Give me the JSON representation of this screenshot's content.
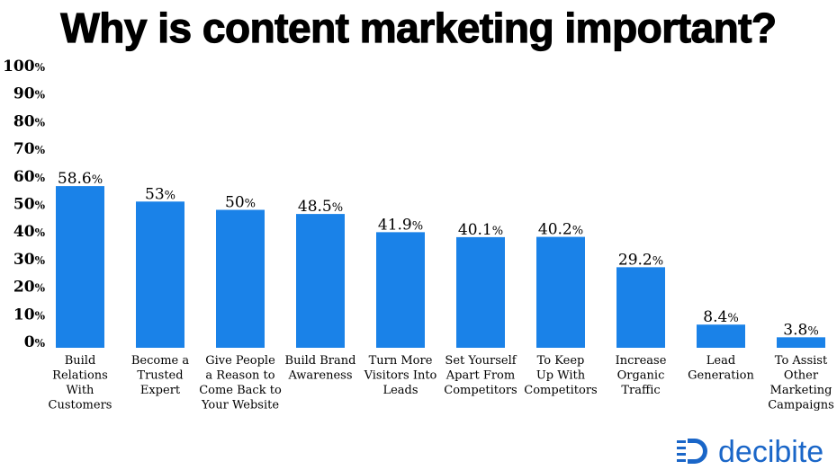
{
  "chart_data": {
    "type": "bar",
    "title": "Why is content marketing important?",
    "categories": [
      [
        "Build",
        "Relations",
        "With",
        "Customers"
      ],
      [
        "Become a",
        "Trusted",
        "Expert"
      ],
      [
        "Give People",
        "a Reason to",
        "Come Back to",
        "Your Website"
      ],
      [
        "Build Brand",
        "Awareness"
      ],
      [
        "Turn More",
        "Visitors Into",
        "Leads"
      ],
      [
        "Set Yourself",
        "Apart From",
        "Competitors"
      ],
      [
        "To Keep",
        "Up With",
        "Competitors"
      ],
      [
        "Increase",
        "Organic",
        "Traffic"
      ],
      [
        "Lead",
        "Generation"
      ],
      [
        "To Assist",
        "Other",
        "Marketing",
        "Campaigns"
      ]
    ],
    "values": [
      58.6,
      53,
      50,
      48.5,
      41.9,
      40.1,
      40.2,
      29.2,
      8.4,
      3.8
    ],
    "value_labels": [
      "58.6",
      "53",
      "50",
      "48.5",
      "41.9",
      "40.1",
      "40.2",
      "29.2",
      "8.4",
      "3.8"
    ],
    "value_suffix": "%",
    "yticks": [
      0,
      10,
      20,
      30,
      40,
      50,
      60,
      70,
      80,
      90,
      100
    ],
    "ylim": [
      0,
      100
    ],
    "grid": false,
    "legend": "none",
    "bar_color": "#1a82e8"
  },
  "brand": {
    "name": "decibite",
    "color": "#1a66c8"
  }
}
